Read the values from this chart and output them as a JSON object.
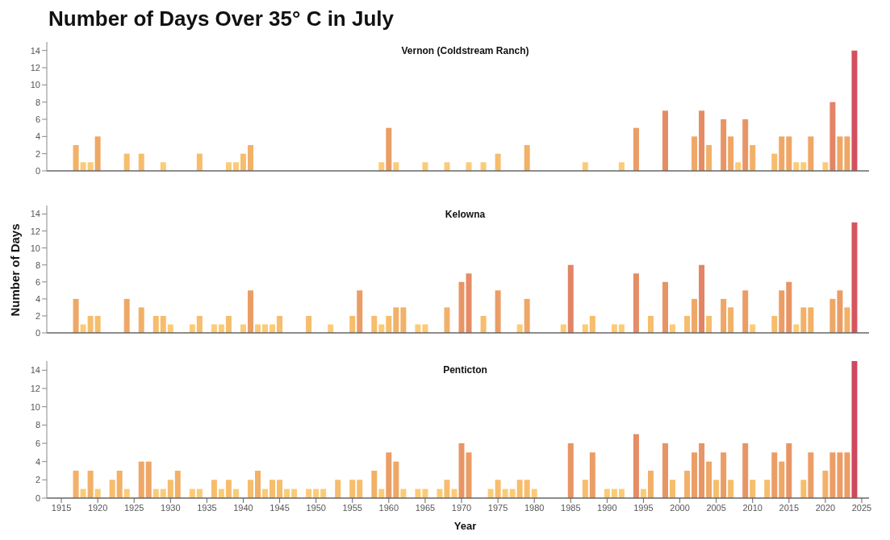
{
  "chart_data": [
    {
      "type": "bar",
      "title": "Number of Days Over 35° C in July",
      "subtitle": "Vernon (Coldstream Ranch)",
      "tick_labels": "y",
      "xlim": [
        1913,
        2026
      ],
      "xticks": [
        1915,
        1920,
        1925,
        1930,
        1935,
        1940,
        1945,
        1950,
        1955,
        1960,
        1965,
        1970,
        1975,
        1980,
        1985,
        1990,
        1995,
        2000,
        2005,
        2010,
        2015,
        2020,
        2025
      ],
      "ylim": [
        0,
        15
      ],
      "yticks": [
        0,
        2,
        4,
        6,
        8,
        10,
        12,
        14
      ],
      "x": [
        1917,
        1918,
        1919,
        1920,
        1924,
        1926,
        1929,
        1934,
        1938,
        1939,
        1940,
        1941,
        1959,
        1960,
        1961,
        1965,
        1968,
        1971,
        1973,
        1975,
        1979,
        1987,
        1992,
        1994,
        1998,
        2002,
        2003,
        2004,
        2006,
        2007,
        2008,
        2009,
        2010,
        2013,
        2014,
        2015,
        2016,
        2017,
        2018,
        2020,
        2021,
        2022,
        2023,
        2024
      ],
      "values": [
        3,
        1,
        1,
        4,
        2,
        2,
        1,
        2,
        1,
        1,
        2,
        3,
        1,
        5,
        1,
        1,
        1,
        1,
        1,
        2,
        3,
        1,
        1,
        5,
        7,
        4,
        7,
        3,
        6,
        4,
        1,
        6,
        3,
        2,
        4,
        4,
        1,
        1,
        4,
        1,
        8,
        4,
        4,
        14
      ],
      "colors": [
        "#f2b168",
        "#fbcb78",
        "#fbcb78",
        "#eea766",
        "#f6bd6c",
        "#f6bd6c",
        "#fbcb78",
        "#f6bd6c",
        "#fbcb78",
        "#fbcb78",
        "#f6bd6c",
        "#f2b168",
        "#fbcb78",
        "#eb9d66",
        "#fbcb78",
        "#fbcb78",
        "#fbcb78",
        "#fbcb78",
        "#fbcb78",
        "#f6bd6c",
        "#f2b168",
        "#fbcb78",
        "#fbcb78",
        "#eb9d66",
        "#e58c65",
        "#eea766",
        "#e58c65",
        "#f2b168",
        "#e89566",
        "#eea766",
        "#fbcb78",
        "#e89566",
        "#f2b168",
        "#f6bd6c",
        "#eea766",
        "#eea766",
        "#fbcb78",
        "#fbcb78",
        "#eea766",
        "#fbcb78",
        "#e28465",
        "#eea766",
        "#eea766",
        "#d34f5f"
      ]
    },
    {
      "type": "bar",
      "subtitle": "Kelowna",
      "ylabel": "Number of Days",
      "tick_labels": "y",
      "xlim": [
        1913,
        2026
      ],
      "xticks": [
        1915,
        1920,
        1925,
        1930,
        1935,
        1940,
        1945,
        1950,
        1955,
        1960,
        1965,
        1970,
        1975,
        1980,
        1985,
        1990,
        1995,
        2000,
        2005,
        2010,
        2015,
        2020,
        2025
      ],
      "ylim": [
        0,
        15
      ],
      "yticks": [
        0,
        2,
        4,
        6,
        8,
        10,
        12,
        14
      ],
      "x": [
        1917,
        1918,
        1919,
        1920,
        1924,
        1926,
        1928,
        1929,
        1930,
        1933,
        1934,
        1936,
        1937,
        1938,
        1940,
        1941,
        1942,
        1943,
        1944,
        1945,
        1949,
        1952,
        1955,
        1956,
        1958,
        1959,
        1960,
        1961,
        1962,
        1964,
        1965,
        1968,
        1970,
        1971,
        1973,
        1975,
        1978,
        1979,
        1984,
        1985,
        1987,
        1988,
        1991,
        1992,
        1994,
        1996,
        1998,
        1999,
        2001,
        2002,
        2003,
        2004,
        2006,
        2007,
        2009,
        2010,
        2013,
        2014,
        2015,
        2016,
        2017,
        2018,
        2021,
        2022,
        2023,
        2024
      ],
      "values": [
        4,
        1,
        2,
        2,
        4,
        3,
        2,
        2,
        1,
        1,
        2,
        1,
        1,
        2,
        1,
        5,
        1,
        1,
        1,
        2,
        2,
        1,
        2,
        5,
        2,
        1,
        2,
        3,
        3,
        1,
        1,
        3,
        6,
        7,
        2,
        5,
        1,
        4,
        1,
        8,
        1,
        2,
        1,
        1,
        7,
        2,
        6,
        1,
        2,
        4,
        8,
        2,
        4,
        3,
        5,
        1,
        2,
        5,
        6,
        1,
        3,
        3,
        4,
        5,
        3,
        13
      ],
      "colors": [
        "#eea766",
        "#fbcb78",
        "#f6bd6c",
        "#f6bd6c",
        "#eea766",
        "#f2b168",
        "#f6bd6c",
        "#f6bd6c",
        "#fbcb78",
        "#fbcb78",
        "#f6bd6c",
        "#fbcb78",
        "#fbcb78",
        "#f6bd6c",
        "#fbcb78",
        "#eb9d66",
        "#fbcb78",
        "#fbcb78",
        "#fbcb78",
        "#f6bd6c",
        "#f6bd6c",
        "#fbcb78",
        "#f6bd6c",
        "#eb9d66",
        "#f6bd6c",
        "#fbcb78",
        "#f6bd6c",
        "#f2b168",
        "#f2b168",
        "#fbcb78",
        "#fbcb78",
        "#f2b168",
        "#e89566",
        "#e58c65",
        "#f6bd6c",
        "#eb9d66",
        "#fbcb78",
        "#eea766",
        "#fbcb78",
        "#e28465",
        "#fbcb78",
        "#f6bd6c",
        "#fbcb78",
        "#fbcb78",
        "#e58c65",
        "#f6bd6c",
        "#e89566",
        "#fbcb78",
        "#f6bd6c",
        "#eea766",
        "#e28465",
        "#f6bd6c",
        "#eea766",
        "#f2b168",
        "#eb9d66",
        "#fbcb78",
        "#f6bd6c",
        "#eb9d66",
        "#e89566",
        "#fbcb78",
        "#f2b168",
        "#f2b168",
        "#eea766",
        "#eb9d66",
        "#f2b168",
        "#d5565f"
      ]
    },
    {
      "type": "bar",
      "subtitle": "Penticton",
      "xlabel": "Year",
      "xlim": [
        1913,
        2026
      ],
      "xticks": [
        1915,
        1920,
        1925,
        1930,
        1935,
        1940,
        1945,
        1950,
        1955,
        1960,
        1965,
        1970,
        1975,
        1980,
        1985,
        1990,
        1995,
        2000,
        2005,
        2010,
        2015,
        2020,
        2025
      ],
      "ylim": [
        0,
        15
      ],
      "yticks": [
        0,
        2,
        4,
        6,
        8,
        10,
        12,
        14
      ],
      "x": [
        1917,
        1918,
        1919,
        1920,
        1922,
        1923,
        1924,
        1926,
        1927,
        1928,
        1929,
        1930,
        1931,
        1933,
        1934,
        1936,
        1937,
        1938,
        1939,
        1941,
        1942,
        1943,
        1944,
        1945,
        1946,
        1947,
        1949,
        1950,
        1951,
        1953,
        1955,
        1956,
        1958,
        1959,
        1960,
        1961,
        1962,
        1964,
        1965,
        1967,
        1968,
        1969,
        1970,
        1971,
        1974,
        1975,
        1976,
        1977,
        1978,
        1979,
        1980,
        1985,
        1987,
        1988,
        1990,
        1991,
        1992,
        1994,
        1995,
        1996,
        1998,
        1999,
        2001,
        2002,
        2003,
        2004,
        2005,
        2006,
        2007,
        2009,
        2010,
        2012,
        2013,
        2014,
        2015,
        2017,
        2018,
        2020,
        2021,
        2022,
        2023,
        2024
      ],
      "values": [
        3,
        1,
        3,
        1,
        2,
        3,
        1,
        4,
        4,
        1,
        1,
        2,
        3,
        1,
        1,
        2,
        1,
        2,
        1,
        2,
        3,
        1,
        2,
        2,
        1,
        1,
        1,
        1,
        1,
        2,
        2,
        2,
        3,
        1,
        5,
        4,
        1,
        1,
        1,
        1,
        2,
        1,
        6,
        5,
        1,
        2,
        1,
        1,
        2,
        2,
        1,
        6,
        2,
        5,
        1,
        1,
        1,
        7,
        1,
        3,
        6,
        2,
        3,
        5,
        6,
        4,
        2,
        5,
        2,
        6,
        2,
        2,
        5,
        4,
        6,
        2,
        5,
        3,
        5,
        5,
        5,
        15
      ],
      "colors": [
        "#f2b168",
        "#fbcb78",
        "#f2b168",
        "#fbcb78",
        "#f6bd6c",
        "#f2b168",
        "#fbcb78",
        "#eea766",
        "#eea766",
        "#fbcb78",
        "#fbcb78",
        "#f6bd6c",
        "#f2b168",
        "#fbcb78",
        "#fbcb78",
        "#f6bd6c",
        "#fbcb78",
        "#f6bd6c",
        "#fbcb78",
        "#f6bd6c",
        "#f2b168",
        "#fbcb78",
        "#f6bd6c",
        "#f6bd6c",
        "#fbcb78",
        "#fbcb78",
        "#fbcb78",
        "#fbcb78",
        "#fbcb78",
        "#f6bd6c",
        "#f6bd6c",
        "#f6bd6c",
        "#f2b168",
        "#fbcb78",
        "#eb9d66",
        "#eea766",
        "#fbcb78",
        "#fbcb78",
        "#fbcb78",
        "#fbcb78",
        "#f6bd6c",
        "#fbcb78",
        "#e89566",
        "#eb9d66",
        "#fbcb78",
        "#f6bd6c",
        "#fbcb78",
        "#fbcb78",
        "#f6bd6c",
        "#f6bd6c",
        "#fbcb78",
        "#e89566",
        "#f6bd6c",
        "#eb9d66",
        "#fbcb78",
        "#fbcb78",
        "#fbcb78",
        "#e58c65",
        "#fbcb78",
        "#f2b168",
        "#e89566",
        "#f6bd6c",
        "#f2b168",
        "#eb9d66",
        "#e89566",
        "#eea766",
        "#f6bd6c",
        "#eb9d66",
        "#f6bd6c",
        "#e89566",
        "#f6bd6c",
        "#f6bd6c",
        "#eb9d66",
        "#eea766",
        "#e89566",
        "#f6bd6c",
        "#eb9d66",
        "#f2b168",
        "#eb9d66",
        "#eb9d66",
        "#eb9d66",
        "#cf475e"
      ]
    }
  ]
}
